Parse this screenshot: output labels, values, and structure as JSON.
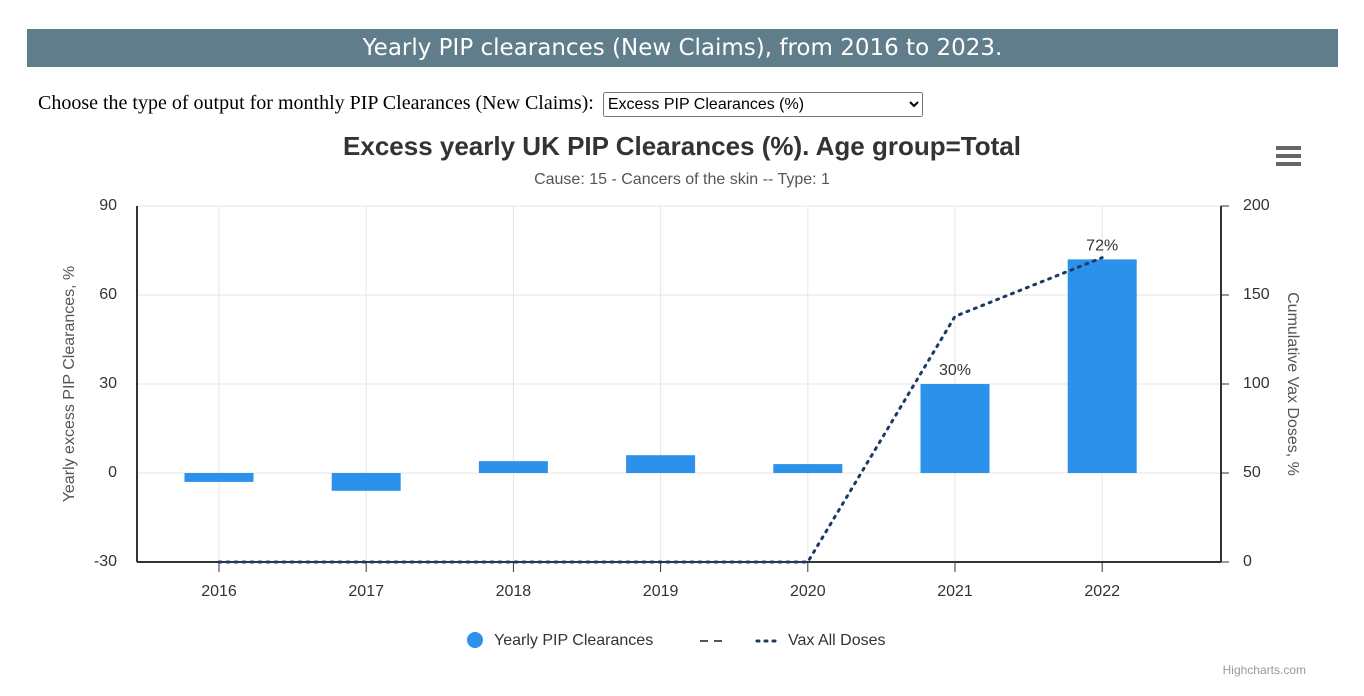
{
  "header": {
    "title": "Yearly PIP clearances (New Claims), from 2016 to 2023."
  },
  "controls": {
    "label": "Choose the type of output for monthly PIP Clearances (New Claims):",
    "select_value": "Excess PIP Clearances (%)"
  },
  "credit": "Highcharts.com",
  "chart_data": {
    "type": "bar",
    "title": "Excess yearly UK PIP Clearances (%). Age group=Total",
    "subtitle": "Cause: 15 - Cancers of the skin -- Type: 1",
    "y_label": "Yearly excess PIP Clearances, %",
    "y2_label": "Cumulative Vax Doses, %",
    "categories": [
      "2016",
      "2017",
      "2018",
      "2019",
      "2020",
      "2021",
      "2022"
    ],
    "series": [
      {
        "name": "Yearly PIP Clearances",
        "type": "bar",
        "color": "#2b91ea",
        "values": [
          -3,
          -6,
          4,
          6,
          3,
          30,
          72
        ],
        "value_labels": [
          null,
          null,
          null,
          null,
          null,
          "30%",
          "72%"
        ]
      },
      {
        "name": "Vax All Doses",
        "type": "line",
        "dash": "dotted",
        "axis": "y2",
        "color": "#1c3a63",
        "values": [
          0,
          0,
          0,
          0,
          0,
          138,
          171
        ]
      }
    ],
    "ylim": [
      -30,
      90
    ],
    "yticks": [
      -30,
      0,
      30,
      60,
      90
    ],
    "y2lim": [
      0,
      200
    ],
    "y2ticks": [
      0,
      50,
      100,
      150,
      200
    ],
    "grid": true
  }
}
